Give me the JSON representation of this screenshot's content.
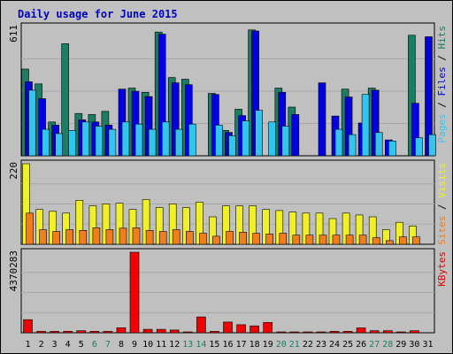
{
  "chart_data": {
    "type": "bar",
    "title": "Daily usage for June 2015",
    "categories": [
      "1",
      "2",
      "3",
      "4",
      "5",
      "6",
      "7",
      "8",
      "9",
      "10",
      "11",
      "12",
      "13",
      "14",
      "15",
      "16",
      "17",
      "18",
      "19",
      "20",
      "21",
      "22",
      "23",
      "24",
      "25",
      "26",
      "27",
      "28",
      "29",
      "30",
      "31"
    ],
    "weekend_days": [
      "6",
      "7",
      "13",
      "14",
      "20",
      "21",
      "27",
      "28"
    ],
    "panels": [
      {
        "id": "hits",
        "max_label": "611",
        "ymax": 611,
        "right_labels": [
          {
            "text": "Pages",
            "color": "#33c4f0"
          },
          {
            "text": "Files",
            "color": "#0000e0"
          },
          {
            "text": "Hits",
            "color": "#1c7c64"
          }
        ],
        "series": [
          {
            "name": "Hits",
            "color": "#1c7c64",
            "values": [
              410,
              340,
              160,
              530,
              200,
              195,
              210,
              0,
              320,
              300,
              585,
              370,
              362,
              0,
              295,
              120,
              220,
              595,
              0,
              320,
              230,
              0,
              0,
              0,
              315,
              0,
              320,
              0,
              0,
              570,
              0
            ]
          },
          {
            "name": "Files",
            "color": "#0000e0",
            "values": [
              350,
              270,
              145,
              0,
              170,
              160,
              145,
              315,
              305,
              280,
              575,
              345,
              336,
              0,
              290,
              110,
              190,
              590,
              0,
              300,
              195,
              0,
              345,
              188,
              278,
              155,
              310,
              75,
              0,
              248,
              563
            ]
          },
          {
            "name": "Pages",
            "color": "#33c4f0",
            "values": [
              310,
              125,
              105,
              120,
              160,
              140,
              125,
              160,
              150,
              125,
              160,
              125,
              150,
              0,
              145,
              95,
              165,
              215,
              160,
              140,
              0,
              0,
              0,
              125,
              100,
              290,
              110,
              70,
              0,
              85,
              100
            ]
          }
        ]
      },
      {
        "id": "visits",
        "max_label": "220",
        "ymax": 220,
        "right_labels": [
          {
            "text": "Sites",
            "color": "#f07e1c"
          },
          {
            "text": "Visits",
            "color": "#f0f028"
          }
        ],
        "series": [
          {
            "name": "Visits",
            "color": "#f0f028",
            "values": [
              220,
              95,
              90,
              85,
              120,
              105,
              110,
              112,
              95,
              122,
              100,
              110,
              100,
              115,
              75,
              105,
              105,
              105,
              95,
              92,
              88,
              85,
              85,
              70,
              85,
              80,
              75,
              40,
              60,
              50,
              0
            ]
          },
          {
            "name": "Sites",
            "color": "#f07e1c",
            "values": [
              85,
              40,
              35,
              40,
              38,
              45,
              40,
              44,
              45,
              38,
              35,
              40,
              35,
              30,
              22,
              35,
              33,
              30,
              28,
              30,
              25,
              25,
              25,
              25,
              25,
              25,
              18,
              10,
              20,
              20,
              0
            ]
          }
        ]
      },
      {
        "id": "kbytes",
        "max_label": "4370283",
        "ymax": 4370283,
        "right_labels": [
          {
            "text": "KBytes",
            "color": "#e00000"
          }
        ],
        "series": [
          {
            "name": "KBytes",
            "color": "#f00000",
            "values": [
              712000,
              75000,
              75000,
              75000,
              112000,
              75000,
              75000,
              275000,
              4370283,
              187000,
              187000,
              150000,
              37000,
              862000,
              75000,
              580000,
              438000,
              375000,
              562000,
              37000,
              37000,
              37000,
              37000,
              75000,
              75000,
              262000,
              112000,
              112000,
              37000,
              112000,
              0
            ]
          }
        ]
      }
    ]
  }
}
